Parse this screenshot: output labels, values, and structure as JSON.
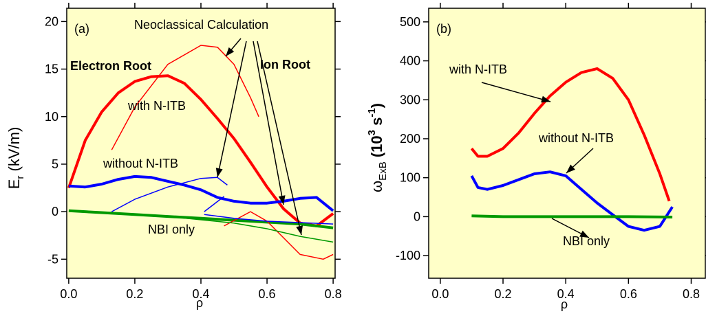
{
  "chart_data": [
    {
      "type": "line",
      "panel_label": "(a)",
      "x_label": "ρ",
      "y_label": [
        "E",
        "r",
        " (kV/m)"
      ],
      "xlim": [
        -0.006,
        0.806
      ],
      "ylim": [
        -7.0,
        21.4
      ],
      "xticks": [
        {
          "value": 0,
          "label": "0.0"
        },
        0.2,
        0.4,
        0.6,
        0.8
      ],
      "yticks": [
        -5,
        0,
        5,
        10,
        15,
        20
      ],
      "background": "#ffffc8",
      "annotations": [
        "Neoclassical Calculation",
        "Electron Root",
        "Ion Root",
        "with N-ITB",
        "without N-ITB",
        "NBI only"
      ],
      "series": [
        {
          "color": "#ff0000",
          "line_width": 4,
          "x": [
            0,
            0.05,
            0.1,
            0.15,
            0.2,
            0.25,
            0.3,
            0.35,
            0.4,
            0.45,
            0.5,
            0.55,
            0.6,
            0.65,
            0.7,
            0.75,
            0.8
          ],
          "values": [
            2.5,
            7.5,
            10.5,
            12.5,
            13.7,
            14.2,
            14.3,
            13.5,
            11.8,
            9.8,
            7.7,
            5.2,
            2.6,
            0.3,
            -1.2,
            -1.5,
            -0.2
          ]
        },
        {
          "color": "#0000ff",
          "line_width": 4,
          "x": [
            0,
            0.05,
            0.1,
            0.15,
            0.2,
            0.25,
            0.3,
            0.35,
            0.4,
            0.45,
            0.5,
            0.55,
            0.6,
            0.65,
            0.7,
            0.75,
            0.8
          ],
          "values": [
            2.7,
            2.6,
            2.9,
            3.4,
            3.7,
            3.6,
            3.2,
            2.8,
            2.3,
            1.5,
            1.1,
            0.9,
            0.9,
            1.1,
            1.4,
            1.5,
            0.1
          ]
        },
        {
          "color": "#009900",
          "line_width": 4,
          "x": [
            0,
            0.1,
            0.2,
            0.3,
            0.4,
            0.5,
            0.6,
            0.7,
            0.8
          ],
          "values": [
            0.1,
            -0.1,
            -0.3,
            -0.5,
            -0.7,
            -0.9,
            -1.1,
            -1.3,
            -1.7
          ]
        },
        {
          "color": "#ff0000",
          "line_width": 1.5,
          "x": [
            0.13,
            0.2,
            0.3,
            0.4,
            0.45,
            0.5,
            0.55,
            0.575,
            null,
            0.47,
            0.55,
            0.6,
            0.7,
            0.77,
            0.8
          ],
          "values": [
            6.5,
            11,
            15.5,
            17.5,
            17.3,
            15.5,
            12,
            10,
            null,
            -1.5,
            0,
            -1,
            -4.5,
            -5,
            -4.5
          ]
        },
        {
          "color": "#0000ff",
          "line_width": 1.5,
          "x": [
            0.13,
            0.2,
            0.3,
            0.4,
            0.45,
            0.48,
            null,
            0.41,
            0.47,
            null,
            0.41,
            0.5,
            0.6,
            0.8
          ],
          "values": [
            0,
            1.3,
            2.6,
            3.5,
            3.6,
            2.8,
            null,
            0,
            1.6,
            null,
            -0.3,
            -0.7,
            -1,
            -1.3
          ]
        },
        {
          "color": "#009900",
          "line_width": 1.5,
          "x": [
            0.3,
            0.5,
            0.6,
            0.7,
            0.8
          ],
          "values": [
            -0.5,
            -1.2,
            -1.8,
            -2.6,
            -3.2
          ]
        }
      ]
    },
    {
      "type": "line",
      "panel_label": "(b)",
      "x_label": "ρ",
      "y_label": [
        "ω",
        "ExB",
        " (10",
        "3",
        " s",
        "-1",
        ")"
      ],
      "xlim": [
        -0.037,
        0.845
      ],
      "ylim": [
        -158,
        535
      ],
      "xticks": [
        {
          "value": 0,
          "label": "0.0"
        },
        0.2,
        0.4,
        0.6,
        0.8
      ],
      "yticks": [
        -100,
        0,
        100,
        200,
        300,
        400,
        500
      ],
      "background": "#ffffc8",
      "annotations": [
        "with N-ITB",
        "without N-ITB",
        "NBI only"
      ],
      "series": [
        {
          "color": "#ff0000",
          "line_width": 4,
          "x": [
            0.1,
            0.12,
            0.15,
            0.2,
            0.25,
            0.3,
            0.35,
            0.4,
            0.45,
            0.5,
            0.55,
            0.6,
            0.65,
            0.7,
            0.73
          ],
          "values": [
            175,
            155,
            155,
            175,
            215,
            265,
            310,
            345,
            370,
            380,
            355,
            300,
            210,
            110,
            40
          ]
        },
        {
          "color": "#0000ff",
          "line_width": 4,
          "x": [
            0.1,
            0.12,
            0.15,
            0.2,
            0.25,
            0.3,
            0.35,
            0.4,
            0.45,
            0.5,
            0.55,
            0.6,
            0.65,
            0.7,
            0.74
          ],
          "values": [
            105,
            75,
            70,
            80,
            95,
            110,
            115,
            105,
            70,
            35,
            5,
            -25,
            -35,
            -25,
            25
          ]
        },
        {
          "color": "#009900",
          "line_width": 4,
          "x": [
            0.1,
            0.2,
            0.4,
            0.6,
            0.74
          ],
          "values": [
            2,
            0,
            0,
            0,
            -1
          ]
        }
      ]
    }
  ]
}
